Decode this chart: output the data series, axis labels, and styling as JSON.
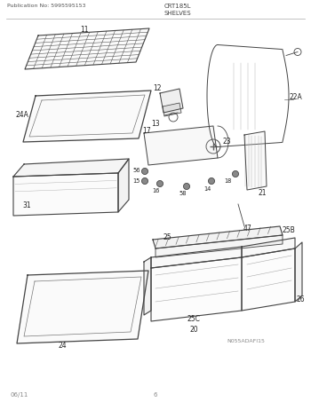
{
  "title_left": "Publication No: 5995595153",
  "title_center": "CRT185L",
  "subtitle_center": "SHELVES",
  "footer_left": "06/11",
  "footer_center": "6",
  "watermark": "N055ADAFI15",
  "bg_color": "#ffffff",
  "line_color": "#444444",
  "label_color": "#222222"
}
